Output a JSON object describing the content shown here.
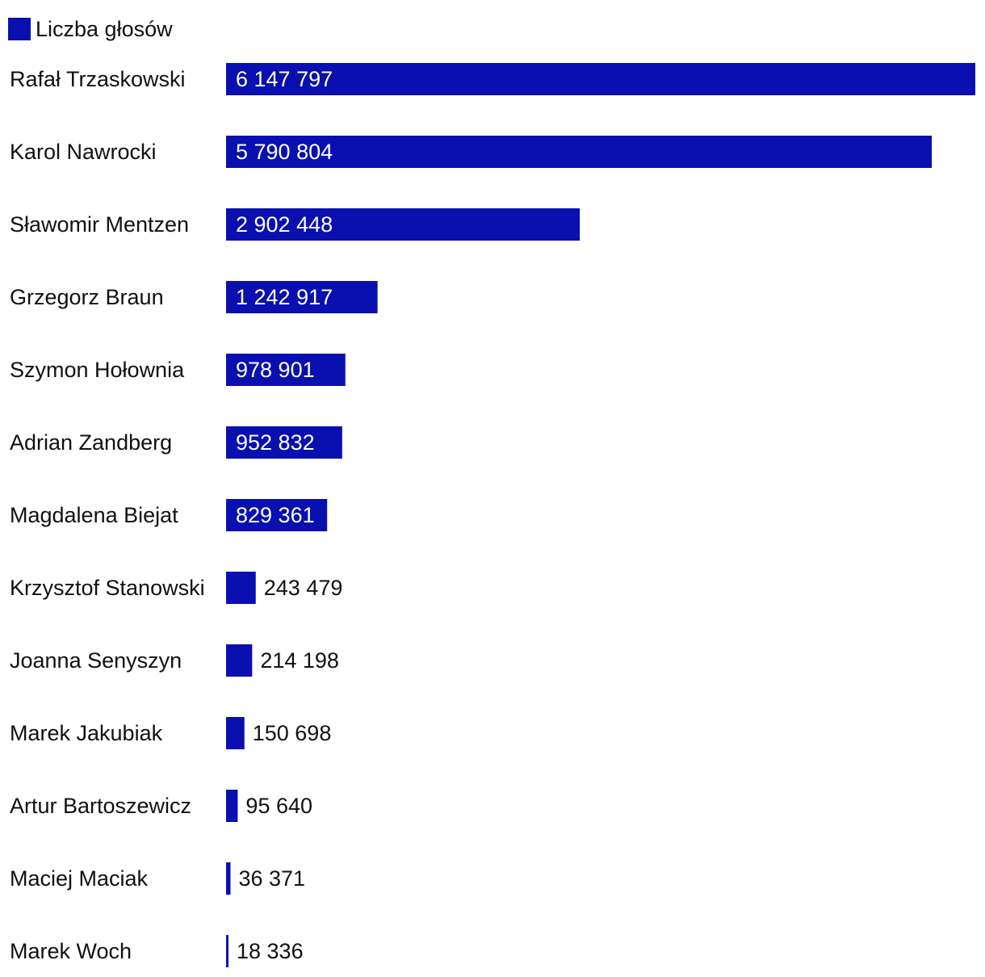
{
  "chart_data": {
    "type": "bar",
    "orientation": "horizontal",
    "legend_position": "top-left",
    "grid": false,
    "bar_color": "#0a0fb0",
    "categories": [
      "Rafał Trzaskowski",
      "Karol Nawrocki",
      "Sławomir Mentzen",
      "Grzegorz Braun",
      "Szymon Hołownia",
      "Adrian Zandberg",
      "Magdalena Biejat",
      "Krzysztof Stanowski",
      "Joanna Senyszyn",
      "Marek Jakubiak",
      "Artur Bartoszewicz",
      "Maciej Maciak",
      "Marek Woch"
    ],
    "series": [
      {
        "name": "Liczba głosów",
        "values": [
          6147797,
          5790804,
          2902448,
          1242917,
          978901,
          952832,
          829361,
          243479,
          214198,
          150698,
          95640,
          36371,
          18336
        ],
        "labels": [
          "6 147 797",
          "5 790 804",
          "2 902 448",
          "1 242 917",
          "978 901",
          "952 832",
          "829 361",
          "243 479",
          "214 198",
          "150 698",
          "95 640",
          "36 371",
          "18 336"
        ]
      }
    ],
    "xlim": [
      0,
      6147797
    ]
  }
}
